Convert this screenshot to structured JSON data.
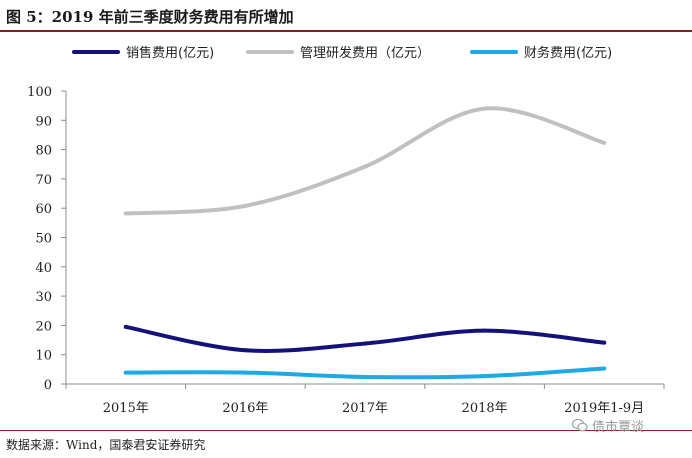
{
  "header": {
    "title": "图 5：2019 年前三季度财务费用有所增加"
  },
  "footer": {
    "source": "数据来源：Wind，国泰君安证券研究",
    "watermark": "债市覃谈"
  },
  "icons": {
    "watermark_icon": "wechat-icon"
  },
  "chart_data": {
    "type": "line",
    "categories": [
      "2015年",
      "2016年",
      "2017年",
      "2018年",
      "2019年1-9月"
    ],
    "series": [
      {
        "name": "销售费用(亿元)",
        "color": "#14127a",
        "values": [
          19.5,
          11.5,
          13.8,
          18.2,
          14.1
        ]
      },
      {
        "name": "管理研发费用（亿元）",
        "color": "#c0c0c0",
        "values": [
          58.2,
          60.8,
          74.2,
          94.0,
          82.3
        ]
      },
      {
        "name": "财务费用(亿元)",
        "color": "#1ea8e6",
        "values": [
          3.9,
          3.9,
          2.4,
          2.7,
          5.3
        ]
      }
    ],
    "ylim": [
      0,
      100
    ],
    "yticks": [
      0,
      10,
      20,
      30,
      40,
      50,
      60,
      70,
      80,
      90,
      100
    ],
    "grid": false,
    "legend": "top",
    "title": "",
    "xlabel": "",
    "ylabel": ""
  }
}
